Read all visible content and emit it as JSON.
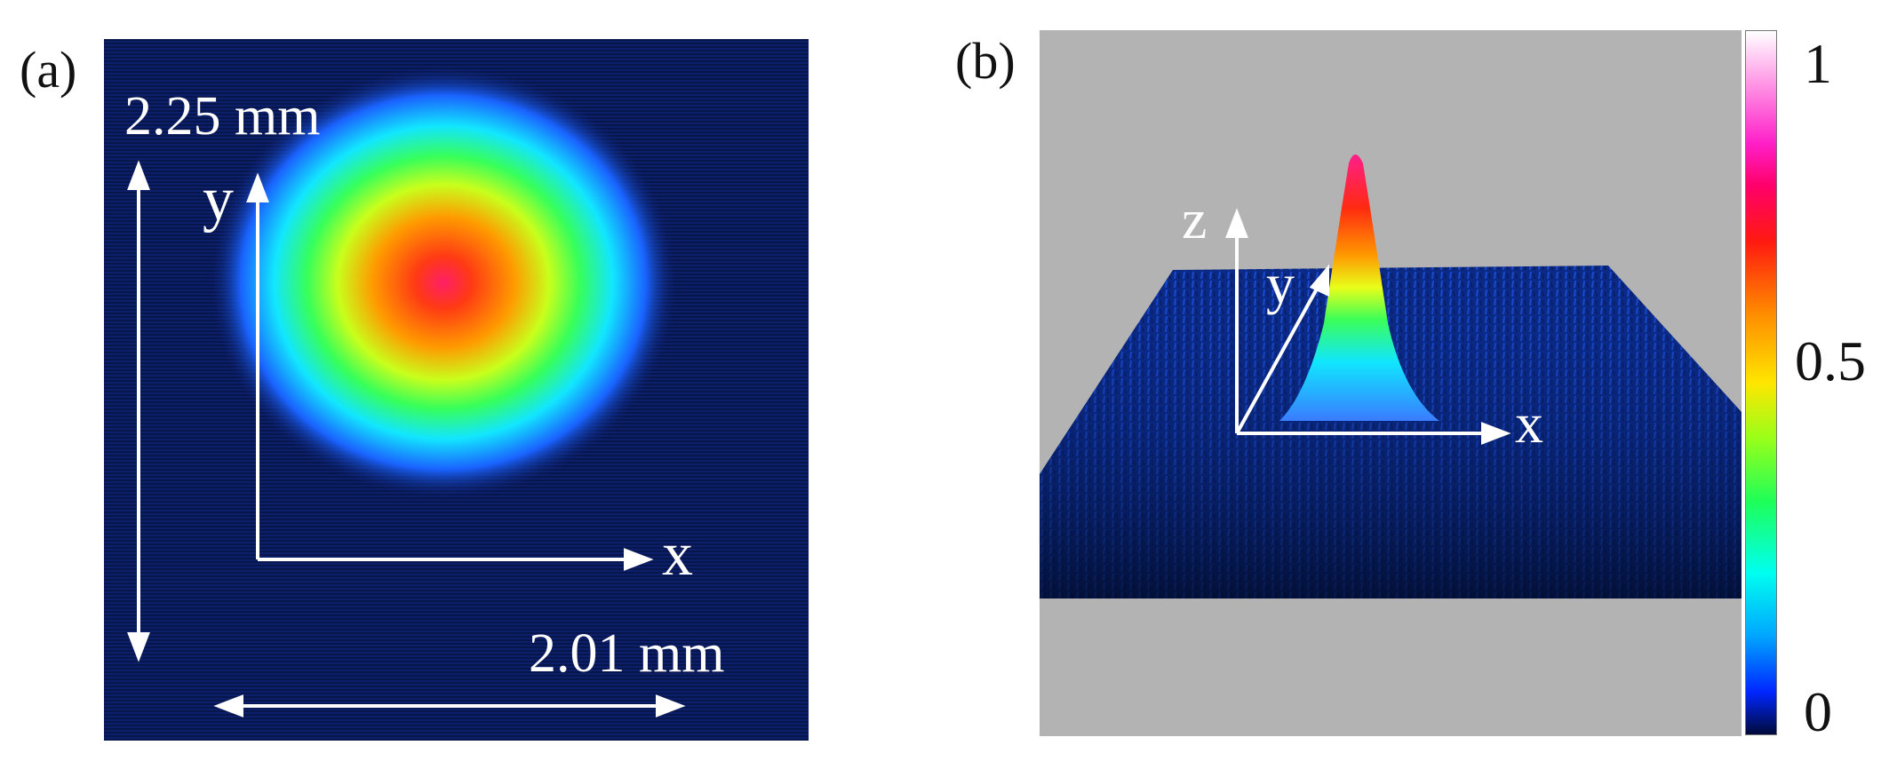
{
  "panel_a": {
    "label": "(a)",
    "height_dimension": "2.25 mm",
    "width_dimension": "2.01 mm",
    "axis_x": "x",
    "axis_y": "y"
  },
  "panel_b": {
    "label": "(b)",
    "axis_x": "x",
    "axis_y": "y",
    "axis_z": "z"
  },
  "colorbar": {
    "ticks": [
      "1",
      "0.5",
      "0"
    ],
    "colors": [
      "#ffffff",
      "#ff1fc8",
      "#ff006a",
      "#ff1a10",
      "#ff8a00",
      "#ffe600",
      "#97ff1a",
      "#1dff5a",
      "#00fff0",
      "#00a6ff",
      "#0026ff",
      "#000a3a"
    ]
  },
  "colors": {
    "background_dark": "#0a1a5c",
    "gray_background": "#b3b3b3",
    "arrow": "#ffffff"
  }
}
